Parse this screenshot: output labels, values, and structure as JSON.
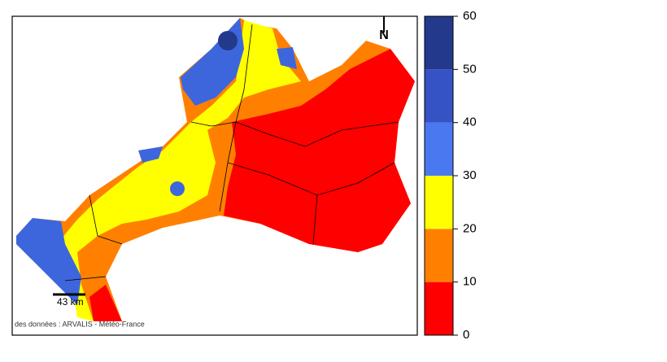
{
  "map": {
    "north_label": "N",
    "scale_label": "43 km",
    "attribution": "des données : ARVALIS - Météo-France"
  },
  "legend": {
    "ticks": [
      0,
      10,
      20,
      30,
      40,
      50,
      60
    ],
    "colors": [
      "#ff0000",
      "#ff8000",
      "#ffff00",
      "#4a78f0",
      "#3553c4",
      "#233a8c"
    ]
  }
}
